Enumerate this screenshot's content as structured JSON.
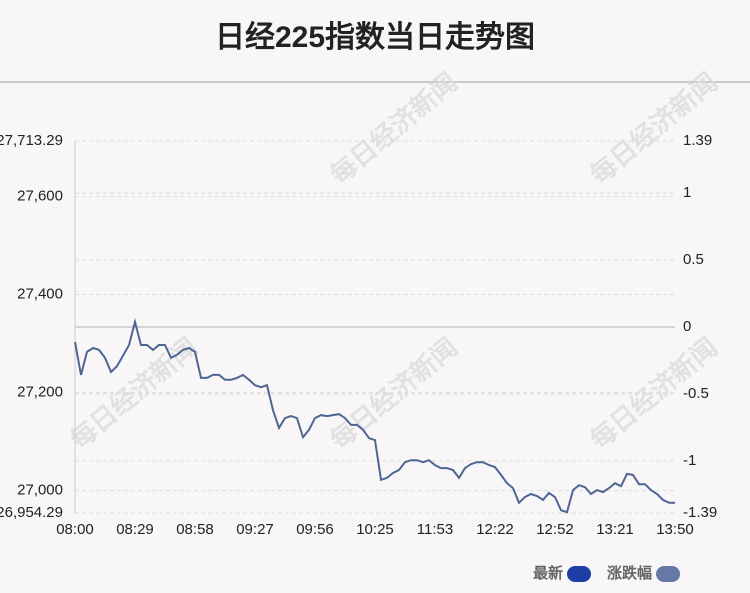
{
  "chart_data": {
    "type": "line",
    "title": "日经225指数当日走势图",
    "watermark": "每日经济新闻",
    "x": [
      0,
      1,
      2,
      3,
      4,
      5,
      6,
      7,
      8,
      9,
      10,
      11,
      12,
      13,
      14,
      15,
      16,
      17,
      18,
      19,
      20,
      21,
      22,
      23,
      24,
      25,
      26,
      27,
      28,
      29,
      30,
      31,
      32,
      33,
      34,
      35,
      36,
      37,
      38,
      39,
      40,
      41,
      42,
      43,
      44,
      45,
      46,
      47,
      48,
      49,
      50,
      51,
      52,
      53,
      54,
      55,
      56,
      57,
      58,
      59,
      60,
      61,
      62,
      63,
      64,
      65,
      66,
      67,
      68,
      69,
      70,
      71,
      72,
      73,
      74,
      75,
      76,
      77,
      78,
      79,
      80,
      81,
      82,
      83,
      84,
      85,
      86,
      87,
      88,
      89,
      90,
      91,
      92,
      93,
      94,
      95,
      96,
      97,
      98,
      99,
      100
    ],
    "xlim": [
      0,
      100
    ],
    "xticks": [
      {
        "value": 0,
        "label": "08:00"
      },
      {
        "value": 10,
        "label": "08:29"
      },
      {
        "value": 20,
        "label": "08:58"
      },
      {
        "value": 30,
        "label": "09:27"
      },
      {
        "value": 40,
        "label": "09:56"
      },
      {
        "value": 50,
        "label": "10:25"
      },
      {
        "value": 60,
        "label": "11:53"
      },
      {
        "value": 70,
        "label": "12:22"
      },
      {
        "value": 80,
        "label": "12:52"
      },
      {
        "value": 90,
        "label": "13:21"
      },
      {
        "value": 100,
        "label": "13:50"
      }
    ],
    "series": [
      {
        "name": "最新",
        "color": "#4f6593",
        "values": [
          27303,
          27236,
          27283,
          27291,
          27287,
          27271,
          27242,
          27254,
          27275,
          27297,
          27344,
          27297,
          27297,
          27287,
          27297,
          27297,
          27271,
          27277,
          27287,
          27291,
          27283,
          27230,
          27230,
          27236,
          27236,
          27226,
          27226,
          27230,
          27236,
          27226,
          27215,
          27211,
          27215,
          27164,
          27128,
          27148,
          27152,
          27148,
          27109,
          27124,
          27148,
          27154,
          27152,
          27154,
          27156,
          27148,
          27134,
          27134,
          27124,
          27107,
          27103,
          27022,
          27026,
          27036,
          27042,
          27058,
          27062,
          27062,
          27058,
          27062,
          27052,
          27046,
          27046,
          27042,
          27026,
          27046,
          27054,
          27058,
          27058,
          27052,
          27048,
          27032,
          27015,
          27005,
          26975,
          26987,
          26993,
          26989,
          26981,
          26995,
          26987,
          26960,
          26956,
          27001,
          27011,
          27007,
          26993,
          27001,
          26997,
          27005,
          27015,
          27009,
          27034,
          27032,
          27013,
          27013,
          27001,
          26993,
          26981,
          26975,
          26975
        ]
      }
    ],
    "legend": [
      {
        "name": "最新",
        "color": "#1e3ea6"
      },
      {
        "name": "涨跌幅",
        "color": "#6479a6"
      }
    ],
    "ylim": [
      26954.29,
      27713.29
    ],
    "yticks": [
      {
        "value": 27713.29,
        "label": "27,713.29"
      },
      {
        "value": 27600,
        "label": "27,600"
      },
      {
        "value": 27400,
        "label": "27,400"
      },
      {
        "value": 27200,
        "label": "27,200"
      },
      {
        "value": 27000,
        "label": "27,000"
      },
      {
        "value": 26954.29,
        "label": "26,954.29"
      }
    ],
    "y2lim": [
      -1.39,
      1.39
    ],
    "y2ticks": [
      1.39,
      1,
      0.5,
      0,
      -0.5,
      -1,
      -1.39
    ],
    "grid": true
  }
}
